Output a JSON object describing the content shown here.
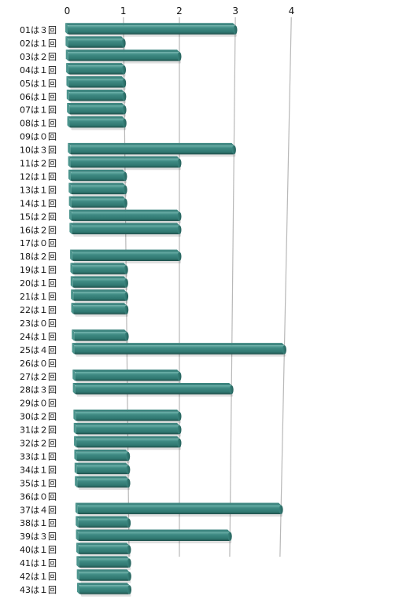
{
  "chart_data": {
    "type": "bar",
    "orientation": "horizontal",
    "style": "3d-perspective",
    "bar_color": "#2f7770",
    "bar_highlight": "#6eb3ab",
    "bar_shadow": "#1e4f4a",
    "gridline_color": "#b8b8b8",
    "grid": true,
    "legend": "none",
    "xlim": [
      0,
      4
    ],
    "xticks": [
      "0",
      "1",
      "2",
      "3",
      "4"
    ],
    "categories": [
      "01は３回",
      "02は１回",
      "03は２回",
      "04は１回",
      "05は１回",
      "06は１回",
      "07は１回",
      "08は１回",
      "09は０回",
      "10は３回",
      "11は２回",
      "12は１回",
      "13は１回",
      "14は１回",
      "15は２回",
      "16は２回",
      "17は０回",
      "18は２回",
      "19は１回",
      "20は１回",
      "21は１回",
      "22は１回",
      "23は０回",
      "24は１回",
      "25は４回",
      "26は０回",
      "27は２回",
      "28は３回",
      "29は０回",
      "30は２回",
      "31は２回",
      "32は２回",
      "33は１回",
      "34は１回",
      "35は１回",
      "36は０回",
      "37は４回",
      "38は１回",
      "39は３回",
      "40は１回",
      "41は１回",
      "42は１回",
      "43は１回"
    ],
    "values": [
      3,
      1,
      2,
      1,
      1,
      1,
      1,
      1,
      0,
      3,
      2,
      1,
      1,
      1,
      2,
      2,
      0,
      2,
      1,
      1,
      1,
      1,
      0,
      1,
      4,
      0,
      2,
      3,
      0,
      2,
      2,
      2,
      1,
      1,
      1,
      0,
      4,
      1,
      3,
      1,
      1,
      1,
      1
    ]
  }
}
